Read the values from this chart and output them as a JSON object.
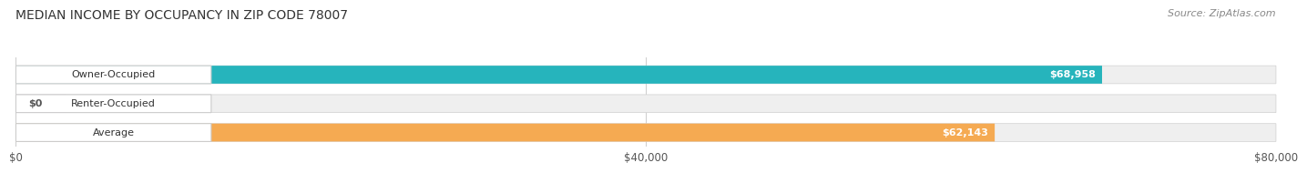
{
  "title": "MEDIAN INCOME BY OCCUPANCY IN ZIP CODE 78007",
  "source": "Source: ZipAtlas.com",
  "categories": [
    "Owner-Occupied",
    "Renter-Occupied",
    "Average"
  ],
  "values": [
    68958,
    0,
    62143
  ],
  "bar_colors": [
    "#26b4bc",
    "#c9a8d4",
    "#f5aa52"
  ],
  "bar_labels": [
    "$68,958",
    "$0",
    "$62,143"
  ],
  "xmax": 80000,
  "xticks": [
    0,
    40000,
    80000
  ],
  "xtick_labels": [
    "$0",
    "$40,000",
    "$80,000"
  ],
  "bg_color": "#ffffff",
  "bar_bg_color": "#efefef",
  "title_fontsize": 10,
  "source_fontsize": 8
}
